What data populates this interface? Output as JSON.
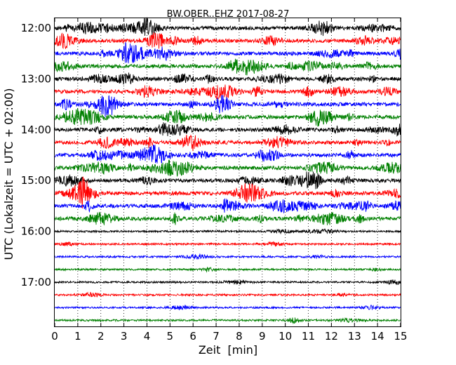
{
  "chart_data": {
    "type": "line",
    "title": "BW.OBER..EHZ 2017-08-27",
    "xlabel": "Zeit  [min]",
    "ylabel": "UTC (Lokalzeit = UTC + 02:00)",
    "xlim": [
      0,
      15
    ],
    "x_ticks": [
      "0",
      "1",
      "2",
      "3",
      "4",
      "5",
      "6",
      "7",
      "8",
      "9",
      "10",
      "11",
      "12",
      "13",
      "14",
      "15"
    ],
    "y_tick_labels": [
      "12:00",
      "13:00",
      "14:00",
      "15:00",
      "16:00",
      "17:00"
    ],
    "grid": "vertical dotted at each minute",
    "trace_colors": [
      "#000000",
      "#ff0000",
      "#0000ff",
      "#008000"
    ],
    "series": [
      {
        "start": "12:00",
        "color": "#000000"
      },
      {
        "start": "12:15",
        "color": "#ff0000"
      },
      {
        "start": "12:30",
        "color": "#0000ff"
      },
      {
        "start": "12:45",
        "color": "#008000"
      },
      {
        "start": "13:00",
        "color": "#000000"
      },
      {
        "start": "13:15",
        "color": "#ff0000"
      },
      {
        "start": "13:30",
        "color": "#0000ff"
      },
      {
        "start": "13:45",
        "color": "#008000"
      },
      {
        "start": "14:00",
        "color": "#000000"
      },
      {
        "start": "14:15",
        "color": "#ff0000"
      },
      {
        "start": "14:30",
        "color": "#0000ff"
      },
      {
        "start": "14:45",
        "color": "#008000"
      },
      {
        "start": "15:00",
        "color": "#000000"
      },
      {
        "start": "15:15",
        "color": "#ff0000"
      },
      {
        "start": "15:30",
        "color": "#0000ff"
      },
      {
        "start": "15:45",
        "color": "#008000"
      },
      {
        "start": "16:00",
        "color": "#000000"
      },
      {
        "start": "16:15",
        "color": "#ff0000"
      },
      {
        "start": "16:30",
        "color": "#0000ff"
      },
      {
        "start": "16:45",
        "color": "#008000"
      },
      {
        "start": "17:00",
        "color": "#000000"
      },
      {
        "start": "17:15",
        "color": "#ff0000"
      },
      {
        "start": "17:30",
        "color": "#0000ff"
      },
      {
        "start": "17:45",
        "color": "#008000"
      }
    ]
  }
}
